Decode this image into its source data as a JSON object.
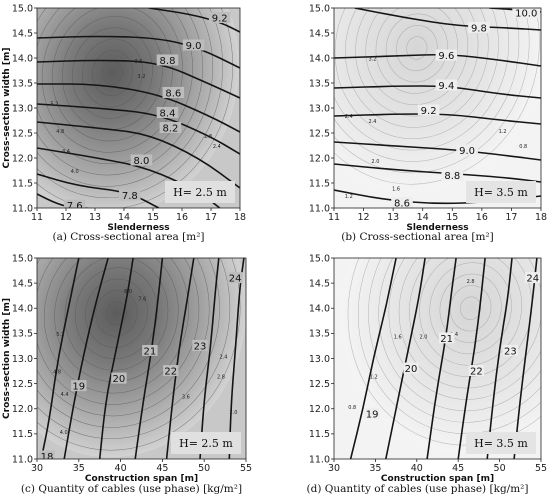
{
  "chart_data": [
    {
      "type": "contour",
      "caption": "(a) Cross-sectional area [m²]",
      "xlabel": "Slenderness",
      "ylabel": "Cross-section width [m]",
      "x_ticks": [
        11,
        12,
        13,
        14,
        15,
        16,
        17,
        18
      ],
      "y_ticks": [
        "11.0",
        "11.5",
        "12.0",
        "12.5",
        "13.0",
        "13.5",
        "14.0",
        "14.5",
        "15.0"
      ],
      "xlim": [
        11,
        18
      ],
      "ylim": [
        11.0,
        15.0
      ],
      "annotation": "H= 2.5 m",
      "shading": "dark",
      "shading_center": {
        "x": 13.6,
        "y": 13.7
      },
      "shading_labels": [
        {
          "text": "5.2",
          "x": 11.6,
          "y": 13.05
        },
        {
          "text": "4.8",
          "x": 11.8,
          "y": 12.5
        },
        {
          "text": "4.4",
          "x": 12.0,
          "y": 12.1
        },
        {
          "text": "4.0",
          "x": 12.3,
          "y": 11.7
        },
        {
          "text": "3.6",
          "x": 14.5,
          "y": 13.9
        },
        {
          "text": "3.2",
          "x": 14.6,
          "y": 13.6
        },
        {
          "text": "2.8",
          "x": 16.9,
          "y": 12.4
        },
        {
          "text": "2.4",
          "x": 17.2,
          "y": 12.2
        }
      ],
      "contour_lines": [
        {
          "level": "7.6",
          "label_x": 12.3,
          "label_y": 11.05
        },
        {
          "level": "7.8",
          "label_x": 14.2,
          "label_y": 11.25
        },
        {
          "level": "8.0",
          "label_x": 14.6,
          "label_y": 11.95
        },
        {
          "level": "8.2",
          "label_x": 15.6,
          "label_y": 12.6
        },
        {
          "level": "8.4",
          "label_x": 15.5,
          "label_y": 12.9
        },
        {
          "level": "8.6",
          "label_x": 15.7,
          "label_y": 13.3
        },
        {
          "level": "8.8",
          "label_x": 15.5,
          "label_y": 13.95
        },
        {
          "level": "9.0",
          "label_x": 16.4,
          "label_y": 14.25
        },
        {
          "level": "9.2",
          "label_x": 17.3,
          "label_y": 14.8
        }
      ]
    },
    {
      "type": "contour",
      "caption": "(b) Cross-sectional area [m²]",
      "xlabel": "Slenderness",
      "ylabel": "",
      "x_ticks": [
        11,
        12,
        13,
        14,
        15,
        16,
        17,
        18
      ],
      "y_ticks": [
        "11.0",
        "11.5",
        "12.0",
        "12.5",
        "13.0",
        "13.5",
        "14.0",
        "14.5",
        "15.0"
      ],
      "xlim": [
        11,
        18
      ],
      "ylim": [
        11.0,
        15.0
      ],
      "annotation": "H= 3.5 m",
      "shading": "light",
      "shading_center": {
        "x": 13.8,
        "y": 14.2
      },
      "shading_labels": [
        {
          "text": "3.2",
          "x": 12.3,
          "y": 13.95
        },
        {
          "text": "2.4",
          "x": 11.5,
          "y": 12.8
        },
        {
          "text": "2.4",
          "x": 12.3,
          "y": 12.7
        },
        {
          "text": "2.0",
          "x": 12.4,
          "y": 11.9
        },
        {
          "text": "1.6",
          "x": 13.1,
          "y": 11.35
        },
        {
          "text": "1.2",
          "x": 11.5,
          "y": 11.2
        },
        {
          "text": "1.2",
          "x": 16.7,
          "y": 12.5
        },
        {
          "text": "0.8",
          "x": 17.4,
          "y": 12.2
        }
      ],
      "contour_lines": [
        {
          "level": "8.6",
          "label_x": 13.3,
          "label_y": 11.1
        },
        {
          "level": "8.8",
          "label_x": 15.0,
          "label_y": 11.65
        },
        {
          "level": "9.0",
          "label_x": 15.5,
          "label_y": 12.15
        },
        {
          "level": "9.2",
          "label_x": 14.2,
          "label_y": 12.95
        },
        {
          "level": "9.4",
          "label_x": 14.8,
          "label_y": 13.45
        },
        {
          "level": "9.6",
          "label_x": 14.8,
          "label_y": 14.05
        },
        {
          "level": "9.8",
          "label_x": 15.9,
          "label_y": 14.6
        },
        {
          "level": "10.0",
          "label_x": 17.5,
          "label_y": 14.9
        }
      ]
    },
    {
      "type": "contour",
      "caption": "(c) Quantity of cables (use phase) [kg/m²]",
      "xlabel": "Construction span [m]",
      "ylabel": "Cross-section width [m]",
      "x_ticks": [
        30,
        35,
        40,
        45,
        50,
        55
      ],
      "y_ticks": [
        "11.0",
        "11.5",
        "12.0",
        "12.5",
        "13.0",
        "13.5",
        "14.0",
        "14.5",
        "15.0"
      ],
      "xlim": [
        30,
        55
      ],
      "ylim": [
        11.0,
        15.0
      ],
      "annotation": "H= 2.5 m",
      "shading": "dark",
      "shading_center": {
        "x": 39.5,
        "y": 13.9
      },
      "shading_labels": [
        {
          "text": "8.0",
          "x": 40.9,
          "y": 14.3
        },
        {
          "text": "7.6",
          "x": 42.6,
          "y": 14.15
        },
        {
          "text": "5.2",
          "x": 32.8,
          "y": 13.45
        },
        {
          "text": "4.8",
          "x": 32.4,
          "y": 12.7
        },
        {
          "text": "4.4",
          "x": 33.3,
          "y": 12.25
        },
        {
          "text": "4.0",
          "x": 33.2,
          "y": 11.5
        },
        {
          "text": "3.6",
          "x": 47.8,
          "y": 12.2
        },
        {
          "text": "2.8",
          "x": 52.0,
          "y": 12.6
        },
        {
          "text": "2.4",
          "x": 52.3,
          "y": 13.0
        },
        {
          "text": "2.0",
          "x": 53.5,
          "y": 11.9
        }
      ],
      "contour_lines": [
        {
          "level": "18",
          "label_x": 31.2,
          "label_y": 11.05
        },
        {
          "level": "19",
          "label_x": 35.0,
          "label_y": 12.45
        },
        {
          "level": "20",
          "label_x": 39.8,
          "label_y": 12.6
        },
        {
          "level": "21",
          "label_x": 43.5,
          "label_y": 13.15
        },
        {
          "level": "22",
          "label_x": 46.0,
          "label_y": 12.75
        },
        {
          "level": "23",
          "label_x": 49.5,
          "label_y": 13.25
        },
        {
          "level": "24",
          "label_x": 53.7,
          "label_y": 14.6
        }
      ]
    },
    {
      "type": "contour",
      "caption": "(d) Quantity of cables (use phase) [kg/m²]",
      "xlabel": "Construction span [m]",
      "ylabel": "",
      "x_ticks": [
        30,
        35,
        40,
        45,
        50,
        55
      ],
      "y_ticks": [
        "11.0",
        "11.5",
        "12.0",
        "12.5",
        "13.0",
        "13.5",
        "14.0",
        "14.5",
        "15.0"
      ],
      "xlim": [
        30,
        55
      ],
      "ylim": [
        11.0,
        15.0
      ],
      "annotation": "H= 3.5 m",
      "shading": "light",
      "shading_center": {
        "x": 46.5,
        "y": 14.0
      },
      "shading_labels": [
        {
          "text": "2.8",
          "x": 46.5,
          "y": 14.5
        },
        {
          "text": "2.4",
          "x": 44.5,
          "y": 13.45
        },
        {
          "text": "2.0",
          "x": 40.8,
          "y": 13.4
        },
        {
          "text": "1.6",
          "x": 37.7,
          "y": 13.4
        },
        {
          "text": "1.2",
          "x": 34.8,
          "y": 12.6
        },
        {
          "text": "0.8",
          "x": 32.2,
          "y": 12.0
        }
      ],
      "contour_lines": [
        {
          "level": "19",
          "label_x": 34.6,
          "label_y": 11.9
        },
        {
          "level": "20",
          "label_x": 39.3,
          "label_y": 12.8
        },
        {
          "level": "21",
          "label_x": 43.6,
          "label_y": 13.4
        },
        {
          "level": "22",
          "label_x": 47.2,
          "label_y": 12.75
        },
        {
          "level": "23",
          "label_x": 51.3,
          "label_y": 13.15
        },
        {
          "level": "24",
          "label_x": 54.0,
          "label_y": 14.6
        }
      ]
    }
  ]
}
